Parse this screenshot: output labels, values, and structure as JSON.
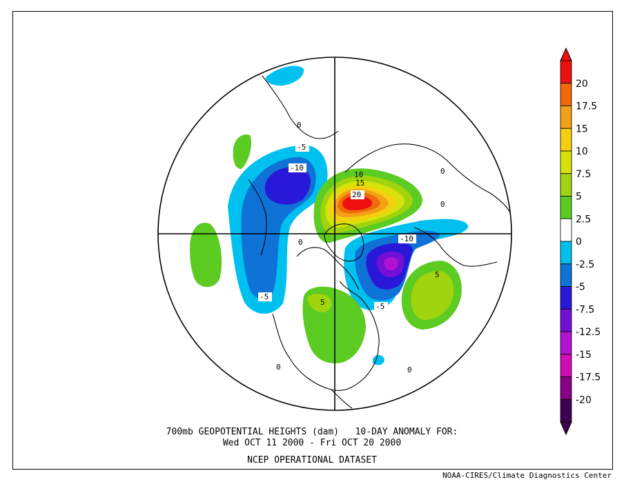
{
  "title_line1": "700mb GEOPOTENTIAL HEIGHTS (dam)   10-DAY ANOMALY FOR:",
  "title_line2": "Wed OCT 11 2000 - Fri OCT 20 2000",
  "dataset": "NCEP OPERATIONAL DATASET",
  "credit": "NOAA-CIRES/Climate Diagnostics Center",
  "colorbar": {
    "labels": [
      "20",
      "17.5",
      "15",
      "10",
      "7.5",
      "5",
      "2.5",
      "0",
      "-2.5",
      "-5",
      "-7.5",
      "-12.5",
      "-15",
      "-17.5",
      "-20"
    ],
    "colors": [
      "#ee1010",
      "#f06a0a",
      "#f3a016",
      "#f4d010",
      "#d6e20a",
      "#a0d40e",
      "#5ccb22",
      "#ffffff",
      "#00c0f0",
      "#0e72d6",
      "#2a18d8",
      "#7210d6",
      "#b212d0",
      "#d00cb8",
      "#880088",
      "#400050"
    ]
  },
  "contour_labels": [
    {
      "text": "-5"
    },
    {
      "text": "-10"
    },
    {
      "text": "0"
    },
    {
      "text": "10"
    },
    {
      "text": "15"
    },
    {
      "text": "20"
    },
    {
      "text": "-10"
    },
    {
      "text": "-5"
    },
    {
      "text": "5"
    },
    {
      "text": "5"
    },
    {
      "text": "-5"
    },
    {
      "text": "0"
    },
    {
      "text": "0"
    },
    {
      "text": "0"
    },
    {
      "text": "0"
    },
    {
      "text": "0"
    }
  ]
}
